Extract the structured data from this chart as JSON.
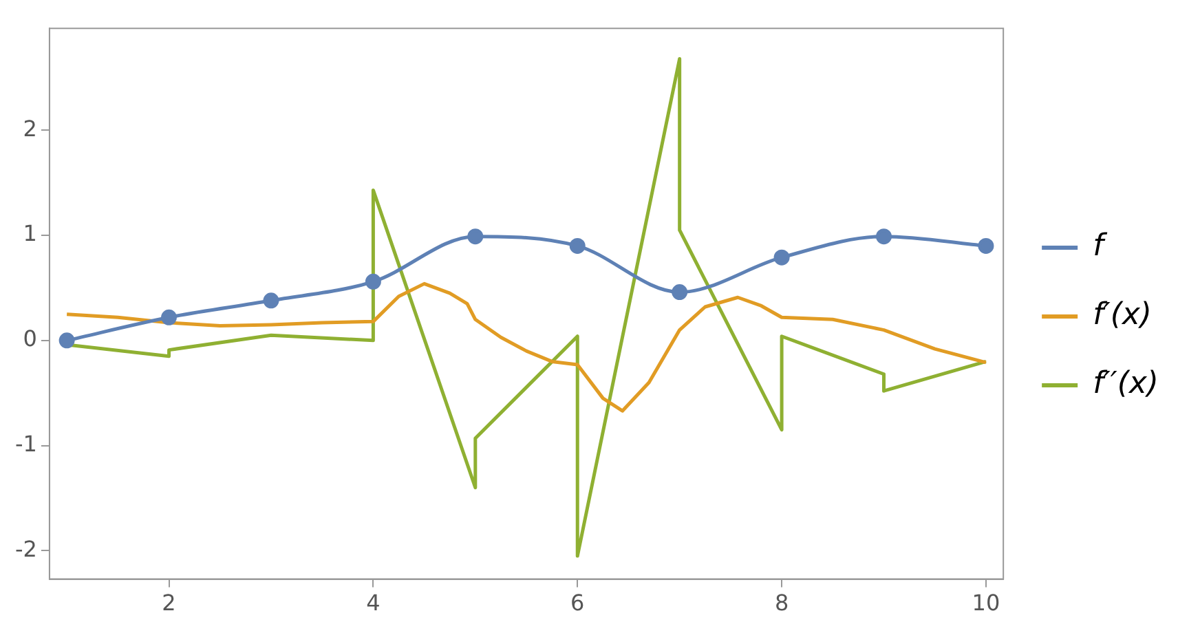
{
  "chart_data": {
    "type": "line",
    "xlim": [
      0.83,
      10.17
    ],
    "ylim": [
      -2.27,
      2.97
    ],
    "xticks": [
      2,
      4,
      6,
      8,
      10
    ],
    "yticks": [
      -2,
      -1,
      0,
      1,
      2
    ],
    "grid": false,
    "legend": "right",
    "line_style": "solid",
    "series": [
      {
        "name": "f",
        "color": "#5e81b5",
        "marker": "circle",
        "x": [
          1,
          2,
          3,
          4,
          5,
          6,
          7,
          8,
          9,
          10
        ],
        "values": [
          0.0,
          0.22,
          0.38,
          0.56,
          0.99,
          0.9,
          0.46,
          0.79,
          0.99,
          0.9
        ]
      },
      {
        "name": "f′(x)",
        "color": "#e19c24",
        "marker": "none",
        "x": [
          1,
          1.5,
          2,
          2.5,
          3,
          3.5,
          4,
          4.25,
          4.5,
          4.75,
          4.92,
          5,
          5.25,
          5.5,
          5.75,
          6,
          6.25,
          6.44,
          6.7,
          7,
          7.25,
          7.57,
          7.8,
          8,
          8.5,
          9,
          9.5,
          10
        ],
        "values": [
          0.25,
          0.22,
          0.17,
          0.14,
          0.15,
          0.17,
          0.18,
          0.42,
          0.54,
          0.45,
          0.35,
          0.2,
          0.03,
          -0.1,
          -0.2,
          -0.23,
          -0.55,
          -0.67,
          -0.4,
          0.1,
          0.32,
          0.41,
          0.33,
          0.22,
          0.2,
          0.1,
          -0.08,
          -0.21
        ]
      },
      {
        "name": "f′′(x)",
        "color": "#8fb032",
        "marker": "none",
        "x": [
          1,
          2,
          2,
          3,
          4,
          4,
          5,
          5,
          6,
          6,
          7,
          7,
          8,
          8,
          9,
          9,
          10
        ],
        "values": [
          -0.04,
          -0.15,
          -0.09,
          0.05,
          0.0,
          1.43,
          -1.4,
          -0.93,
          0.04,
          -2.05,
          2.68,
          1.05,
          -0.85,
          0.04,
          -0.32,
          -0.48,
          -0.2
        ]
      }
    ]
  }
}
